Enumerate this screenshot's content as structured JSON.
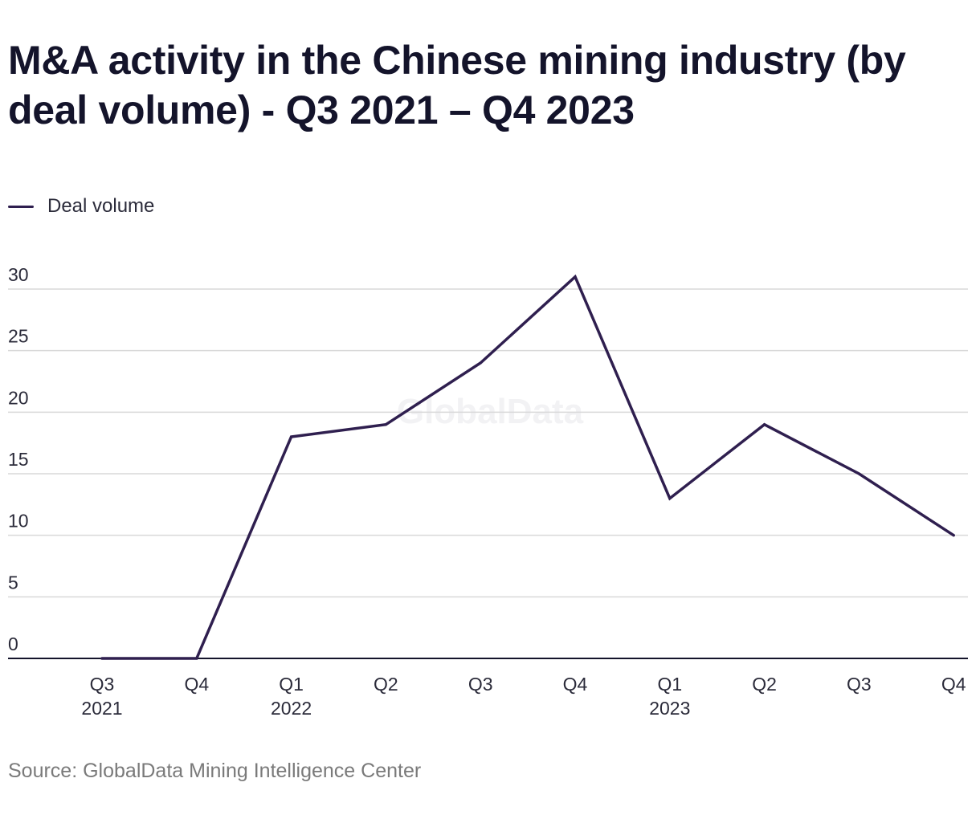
{
  "title": "M&A activity in the Chinese mining industry (by deal volume) - Q3 2021 – Q4 2023",
  "source": "Source: GlobalData Mining Intelligence Center",
  "watermark": "GlobalData",
  "colors": {
    "line": "#2f1f4f",
    "grid": "#d9d9d9",
    "axis": "#14142b",
    "text": "#2b2b3a",
    "source": "#7a7a7a",
    "watermark": "#f2f2f4"
  },
  "chart_data": {
    "type": "line",
    "title": "M&A activity in the Chinese mining industry (by deal volume) - Q3 2021 – Q4 2023",
    "xlabel": "",
    "ylabel": "",
    "ylim": [
      0,
      30
    ],
    "yticks": [
      0,
      5,
      10,
      15,
      20,
      25,
      30
    ],
    "grid": true,
    "legend_position": "top-left",
    "categories": [
      {
        "quarter": "Q3",
        "year": "2021"
      },
      {
        "quarter": "Q4",
        "year": ""
      },
      {
        "quarter": "Q1",
        "year": "2022"
      },
      {
        "quarter": "Q2",
        "year": ""
      },
      {
        "quarter": "Q3",
        "year": ""
      },
      {
        "quarter": "Q4",
        "year": ""
      },
      {
        "quarter": "Q1",
        "year": "2023"
      },
      {
        "quarter": "Q2",
        "year": ""
      },
      {
        "quarter": "Q3",
        "year": ""
      },
      {
        "quarter": "Q4",
        "year": ""
      }
    ],
    "series": [
      {
        "name": "Deal volume",
        "values": [
          0,
          0,
          18,
          19,
          24,
          31,
          13,
          19,
          15,
          10
        ]
      }
    ]
  }
}
